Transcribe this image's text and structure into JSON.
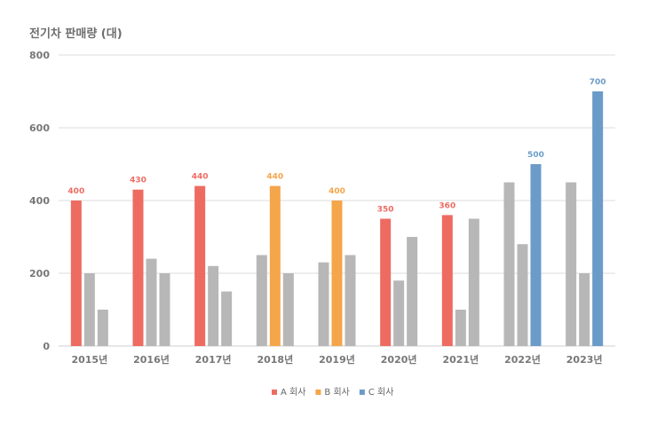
{
  "chart_data": {
    "type": "bar",
    "title": "전기차 판매량 (대)",
    "xlabel": "",
    "ylabel": "",
    "ylim": [
      0,
      800
    ],
    "yticks": [
      0,
      200,
      400,
      600,
      800
    ],
    "grid": true,
    "legend_position": "bottom",
    "categories": [
      "2015년",
      "2016년",
      "2017년",
      "2018년",
      "2019년",
      "2020년",
      "2021년",
      "2022년",
      "2023년"
    ],
    "series": [
      {
        "name": "A 회사",
        "values": [
          400,
          430,
          440,
          250,
          230,
          350,
          360,
          450,
          450
        ]
      },
      {
        "name": "B 회사",
        "values": [
          200,
          240,
          220,
          440,
          400,
          180,
          100,
          280,
          200
        ]
      },
      {
        "name": "C 회사",
        "values": [
          100,
          200,
          150,
          200,
          250,
          300,
          350,
          500,
          700
        ]
      }
    ],
    "highlight": {
      "A 회사": [
        0,
        1,
        2,
        5,
        6
      ],
      "B 회사": [
        3,
        4
      ],
      "C 회사": [
        7,
        8
      ]
    },
    "colors": {
      "A 회사": "#ee6b62",
      "B 회사": "#f5a54a",
      "C 회사": "#6b9bc8",
      "muted": "#b7b7b7",
      "grid": "#dddddd",
      "axis": "#cfcfcf"
    }
  }
}
